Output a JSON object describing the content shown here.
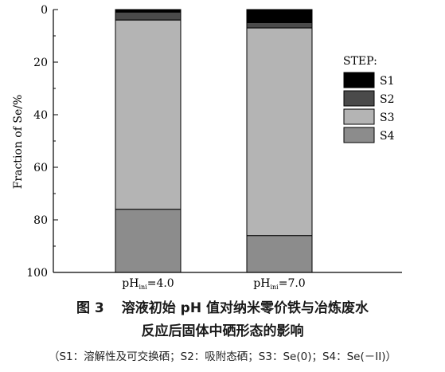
{
  "chart_data": {
    "type": "bar",
    "stacked": true,
    "orientation": "vertical",
    "y_inverted": true,
    "ylabel": "Fraction of Se/%",
    "ylim": [
      0,
      100
    ],
    "yticks": [
      0,
      20,
      40,
      60,
      80,
      100
    ],
    "categories": [
      {
        "base": "pH",
        "sub": "ini",
        "rest": "=4.0"
      },
      {
        "base": "pH",
        "sub": "ini",
        "rest": "=7.0"
      }
    ],
    "legend_title": "STEP:",
    "legend_position": "right",
    "series": [
      {
        "name": "S1",
        "color": "#000000",
        "values": [
          1,
          5
        ]
      },
      {
        "name": "S2",
        "color": "#4a4a4a",
        "values": [
          3,
          2
        ]
      },
      {
        "name": "S3",
        "color": "#b4b4b4",
        "values": [
          72,
          79
        ]
      },
      {
        "name": "S4",
        "color": "#8c8c8c",
        "values": [
          24,
          14
        ]
      }
    ]
  },
  "caption": {
    "figure_no": "图 3",
    "title_line1": "溶液初始 pH 值对纳米零价铁与冶炼废水",
    "title_line2": "反应后固体中硒形态的影响",
    "note": "（S1：溶解性及可交换硒；S2：吸附态硒；S3：Se(0)；S4：Se(－II)）"
  }
}
